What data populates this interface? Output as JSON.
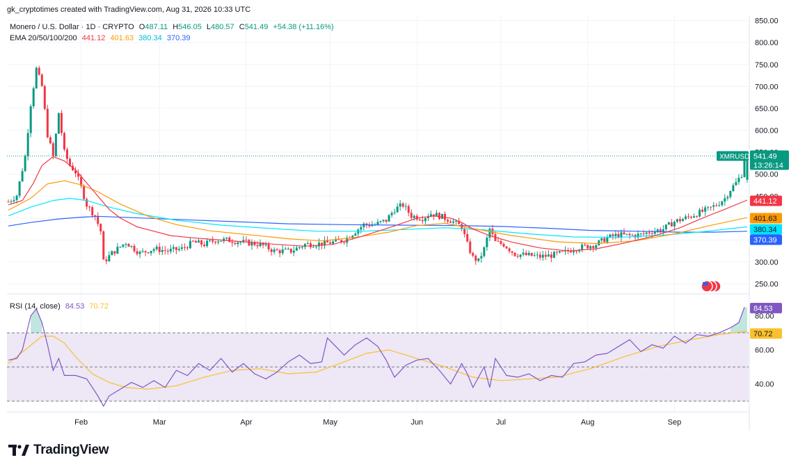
{
  "header": {
    "credit": "gk_cryptotimes created with TradingView.com, Aug 31, 2026 10:33 UTC",
    "symbol_line": "Monero / U.S. Dollar · 1D · CRYPTO",
    "ohlc": {
      "o_label": "O",
      "o": "487.11",
      "h_label": "H",
      "h": "546.05",
      "l_label": "L",
      "l": "480.57",
      "c_label": "C",
      "c": "541.49",
      "chg": "+54.38 (+11.16%)"
    },
    "ema_label": "EMA 20/50/100/200",
    "ema_values": [
      "441.12",
      "401.63",
      "380.34",
      "370.39"
    ]
  },
  "rsi_header": {
    "label": "RSI (14, close)",
    "value": "84.53",
    "ma": "70.72"
  },
  "colors": {
    "up": "#089981",
    "down": "#f23645",
    "ema20": "#f23645",
    "ema50": "#ff9800",
    "ema100": "#00e5ff",
    "ema200": "#2962ff",
    "rsi": "#7e57c2",
    "rsi_ma": "#fbc02d",
    "rsi_band": "#ede7f6",
    "grid": "#f0f3fa",
    "text": "#131722"
  },
  "branding": {
    "name": "TradingView",
    "icon": "tradingview-logo-icon"
  },
  "chart_data": {
    "type": "candlestick",
    "title": "Monero / U.S. Dollar · 1D · CRYPTO",
    "price_axis": {
      "ticks": [
        250,
        300,
        350,
        400,
        450,
        500,
        550,
        600,
        650,
        700,
        750,
        800,
        850
      ],
      "range": [
        232,
        862
      ]
    },
    "time_axis": {
      "labels": [
        "Feb",
        "Mar",
        "Apr",
        "May",
        "Jun",
        "Jul",
        "Aug",
        "Sep"
      ]
    },
    "last_price": {
      "symbol": "XMRUSD",
      "price": "541.49",
      "countdown": "13:26:14"
    },
    "ema_badges": [
      "441.12",
      "401.63",
      "380.34",
      "370.39"
    ],
    "rsi": {
      "ticks": [
        40,
        60,
        80
      ],
      "range": [
        24,
        92
      ],
      "overbought": 70,
      "oversold": 30,
      "middle": 50,
      "value": "84.53",
      "ma": "70.72"
    },
    "price_path": [
      [
        0,
        437
      ],
      [
        3,
        452
      ],
      [
        6,
        540
      ],
      [
        8,
        660
      ],
      [
        10,
        740
      ],
      [
        12,
        700
      ],
      [
        14,
        590
      ],
      [
        16,
        540
      ],
      [
        18,
        640
      ],
      [
        20,
        550
      ],
      [
        22,
        520
      ],
      [
        24,
        505
      ],
      [
        26,
        470
      ],
      [
        28,
        430
      ],
      [
        31,
        405
      ],
      [
        33,
        370
      ],
      [
        34,
        300
      ],
      [
        37,
        320
      ],
      [
        42,
        345
      ],
      [
        47,
        320
      ],
      [
        52,
        330
      ],
      [
        57,
        325
      ],
      [
        62,
        330
      ],
      [
        66,
        345
      ],
      [
        70,
        340
      ],
      [
        74,
        350
      ],
      [
        78,
        350
      ],
      [
        84,
        345
      ],
      [
        90,
        340
      ],
      [
        95,
        325
      ],
      [
        101,
        325
      ],
      [
        106,
        340
      ],
      [
        112,
        342
      ],
      [
        116,
        345
      ],
      [
        120,
        350
      ],
      [
        124,
        370
      ],
      [
        127,
        385
      ],
      [
        131,
        385
      ],
      [
        135,
        395
      ],
      [
        138,
        420
      ],
      [
        141,
        430
      ],
      [
        144,
        405
      ],
      [
        148,
        400
      ],
      [
        151,
        410
      ],
      [
        154,
        405
      ],
      [
        158,
        395
      ],
      [
        162,
        380
      ],
      [
        164,
        340
      ],
      [
        166,
        310
      ],
      [
        168,
        302
      ],
      [
        170,
        330
      ],
      [
        172,
        375
      ],
      [
        174,
        345
      ],
      [
        177,
        340
      ],
      [
        181,
        318
      ],
      [
        186,
        315
      ],
      [
        190,
        312
      ],
      [
        194,
        315
      ],
      [
        198,
        320
      ],
      [
        202,
        330
      ],
      [
        206,
        335
      ],
      [
        210,
        340
      ],
      [
        214,
        355
      ],
      [
        218,
        362
      ],
      [
        222,
        360
      ],
      [
        226,
        362
      ],
      [
        230,
        370
      ],
      [
        234,
        375
      ],
      [
        238,
        392
      ],
      [
        242,
        400
      ],
      [
        246,
        410
      ],
      [
        250,
        420
      ],
      [
        253,
        430
      ],
      [
        256,
        445
      ],
      [
        258,
        465
      ],
      [
        260,
        480
      ],
      [
        262,
        500
      ],
      [
        263,
        540
      ]
    ],
    "ema20_path": [
      [
        0,
        430
      ],
      [
        5,
        440
      ],
      [
        9,
        480
      ],
      [
        12,
        520
      ],
      [
        16,
        540
      ],
      [
        20,
        530
      ],
      [
        24,
        510
      ],
      [
        28,
        480
      ],
      [
        32,
        450
      ],
      [
        36,
        420
      ],
      [
        40,
        400
      ],
      [
        46,
        380
      ],
      [
        52,
        370
      ],
      [
        58,
        360
      ],
      [
        66,
        355
      ],
      [
        76,
        350
      ],
      [
        86,
        345
      ],
      [
        96,
        340
      ],
      [
        106,
        336
      ],
      [
        116,
        340
      ],
      [
        126,
        358
      ],
      [
        136,
        378
      ],
      [
        146,
        400
      ],
      [
        152,
        405
      ],
      [
        158,
        400
      ],
      [
        162,
        390
      ],
      [
        166,
        375
      ],
      [
        172,
        360
      ],
      [
        180,
        345
      ],
      [
        190,
        332
      ],
      [
        200,
        325
      ],
      [
        210,
        330
      ],
      [
        220,
        343
      ],
      [
        230,
        358
      ],
      [
        240,
        378
      ],
      [
        248,
        400
      ],
      [
        256,
        420
      ],
      [
        264,
        441
      ]
    ],
    "ema50_path": [
      [
        0,
        418
      ],
      [
        8,
        445
      ],
      [
        14,
        478
      ],
      [
        20,
        485
      ],
      [
        26,
        476
      ],
      [
        32,
        460
      ],
      [
        40,
        432
      ],
      [
        50,
        404
      ],
      [
        60,
        385
      ],
      [
        72,
        371
      ],
      [
        86,
        362
      ],
      [
        100,
        353
      ],
      [
        112,
        348
      ],
      [
        124,
        356
      ],
      [
        136,
        368
      ],
      [
        146,
        383
      ],
      [
        156,
        388
      ],
      [
        166,
        376
      ],
      [
        180,
        360
      ],
      [
        196,
        346
      ],
      [
        210,
        342
      ],
      [
        224,
        348
      ],
      [
        238,
        364
      ],
      [
        250,
        382
      ],
      [
        264,
        401
      ]
    ],
    "ema100_path": [
      [
        0,
        405
      ],
      [
        8,
        425
      ],
      [
        16,
        440
      ],
      [
        22,
        445
      ],
      [
        28,
        440
      ],
      [
        36,
        425
      ],
      [
        46,
        410
      ],
      [
        60,
        395
      ],
      [
        76,
        384
      ],
      [
        92,
        377
      ],
      [
        110,
        370
      ],
      [
        126,
        370
      ],
      [
        142,
        374
      ],
      [
        156,
        378
      ],
      [
        170,
        373
      ],
      [
        186,
        364
      ],
      [
        202,
        357
      ],
      [
        218,
        356
      ],
      [
        234,
        361
      ],
      [
        248,
        369
      ],
      [
        264,
        380
      ]
    ],
    "ema200_path": [
      [
        0,
        382
      ],
      [
        8,
        390
      ],
      [
        18,
        398
      ],
      [
        26,
        402
      ],
      [
        32,
        404
      ],
      [
        44,
        401
      ],
      [
        60,
        397
      ],
      [
        80,
        392
      ],
      [
        100,
        387
      ],
      [
        120,
        385
      ],
      [
        140,
        384
      ],
      [
        160,
        383
      ],
      [
        176,
        381
      ],
      [
        192,
        377
      ],
      [
        208,
        372
      ],
      [
        224,
        370
      ],
      [
        240,
        368
      ],
      [
        252,
        368
      ],
      [
        264,
        370
      ]
    ],
    "rsi_path": [
      [
        0,
        54
      ],
      [
        3,
        55
      ],
      [
        5,
        60
      ],
      [
        8,
        80
      ],
      [
        10,
        84
      ],
      [
        12,
        76
      ],
      [
        14,
        63
      ],
      [
        16,
        48
      ],
      [
        18,
        55
      ],
      [
        20,
        45
      ],
      [
        24,
        45
      ],
      [
        28,
        43
      ],
      [
        30,
        38
      ],
      [
        32,
        33
      ],
      [
        34,
        27
      ],
      [
        36,
        33
      ],
      [
        40,
        37
      ],
      [
        44,
        41
      ],
      [
        48,
        38
      ],
      [
        52,
        42
      ],
      [
        56,
        38
      ],
      [
        60,
        48
      ],
      [
        64,
        45
      ],
      [
        68,
        52
      ],
      [
        72,
        48
      ],
      [
        76,
        55
      ],
      [
        80,
        47
      ],
      [
        84,
        52
      ],
      [
        88,
        46
      ],
      [
        92,
        43
      ],
      [
        96,
        47
      ],
      [
        100,
        53
      ],
      [
        104,
        57
      ],
      [
        108,
        52
      ],
      [
        112,
        53
      ],
      [
        114,
        67
      ],
      [
        117,
        62
      ],
      [
        120,
        57
      ],
      [
        124,
        63
      ],
      [
        128,
        67
      ],
      [
        132,
        62
      ],
      [
        135,
        54
      ],
      [
        138,
        44
      ],
      [
        142,
        51
      ],
      [
        146,
        54
      ],
      [
        150,
        55
      ],
      [
        154,
        48
      ],
      [
        158,
        40
      ],
      [
        162,
        52
      ],
      [
        164,
        46
      ],
      [
        166,
        38
      ],
      [
        168,
        44
      ],
      [
        170,
        50
      ],
      [
        172,
        38
      ],
      [
        174,
        55
      ],
      [
        178,
        45
      ],
      [
        182,
        44
      ],
      [
        186,
        46
      ],
      [
        190,
        42
      ],
      [
        194,
        45
      ],
      [
        198,
        44
      ],
      [
        202,
        52
      ],
      [
        206,
        53
      ],
      [
        210,
        57
      ],
      [
        214,
        58
      ],
      [
        218,
        62
      ],
      [
        222,
        66
      ],
      [
        226,
        59
      ],
      [
        230,
        63
      ],
      [
        234,
        61
      ],
      [
        238,
        68
      ],
      [
        242,
        64
      ],
      [
        246,
        69
      ],
      [
        250,
        68
      ],
      [
        254,
        70
      ],
      [
        258,
        73
      ],
      [
        261,
        76
      ],
      [
        263,
        85
      ]
    ],
    "rsi_ma_path": [
      [
        0,
        52
      ],
      [
        6,
        60
      ],
      [
        12,
        68
      ],
      [
        16,
        68
      ],
      [
        20,
        64
      ],
      [
        24,
        56
      ],
      [
        30,
        46
      ],
      [
        36,
        41
      ],
      [
        42,
        38
      ],
      [
        50,
        37
      ],
      [
        60,
        39
      ],
      [
        70,
        44
      ],
      [
        80,
        48
      ],
      [
        90,
        49
      ],
      [
        100,
        46
      ],
      [
        110,
        47
      ],
      [
        120,
        53
      ],
      [
        128,
        58
      ],
      [
        136,
        60
      ],
      [
        146,
        55
      ],
      [
        156,
        50
      ],
      [
        166,
        44
      ],
      [
        176,
        42
      ],
      [
        186,
        43
      ],
      [
        196,
        44
      ],
      [
        208,
        49
      ],
      [
        220,
        56
      ],
      [
        232,
        62
      ],
      [
        244,
        66
      ],
      [
        254,
        69
      ],
      [
        264,
        71
      ]
    ]
  }
}
